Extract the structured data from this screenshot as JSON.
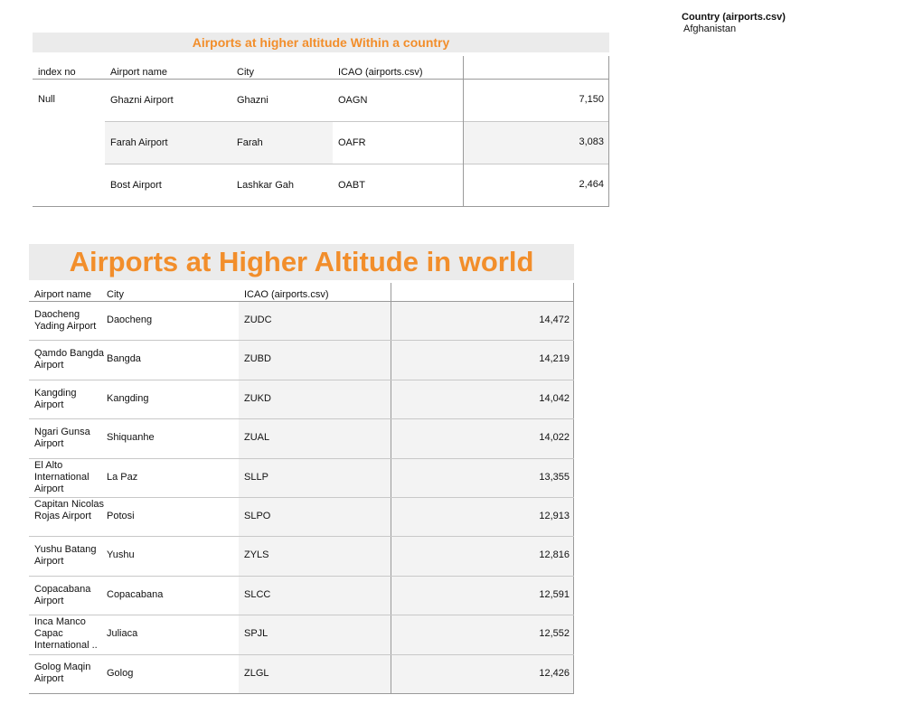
{
  "filter": {
    "title": "Country (airports.csv)",
    "value": "Afghanistan"
  },
  "country_table": {
    "title": "Airports at higher altitude Within a country",
    "headers": [
      "index no",
      "Airport name",
      "City",
      "ICAO (airports.csv)",
      ""
    ],
    "index_value": "Null",
    "rows": [
      {
        "name": "Ghazni Airport",
        "city": "Ghazni",
        "icao": "OAGN",
        "altitude": "7,150"
      },
      {
        "name": "Farah Airport",
        "city": "Farah",
        "icao": "OAFR",
        "altitude": "3,083"
      },
      {
        "name": "Bost Airport",
        "city": "Lashkar Gah",
        "icao": "OABT",
        "altitude": "2,464"
      }
    ]
  },
  "world_table": {
    "title": "Airports at Higher Altitude in world",
    "headers": [
      "Airport name",
      "City",
      "ICAO (airports.csv)",
      ""
    ],
    "rows": [
      {
        "name": "Daocheng Yading Airport",
        "city": "Daocheng",
        "icao": "ZUDC",
        "altitude": "14,472"
      },
      {
        "name": "Qamdo Bangda Airport",
        "city": "Bangda",
        "icao": "ZUBD",
        "altitude": "14,219"
      },
      {
        "name": "Kangding Airport",
        "city": "Kangding",
        "icao": "ZUKD",
        "altitude": "14,042"
      },
      {
        "name": "Ngari Gunsa Airport",
        "city": "Shiquanhe",
        "icao": "ZUAL",
        "altitude": "14,022"
      },
      {
        "name": "El Alto International Airport",
        "city": "La Paz",
        "icao": "SLLP",
        "altitude": "13,355"
      },
      {
        "name": "Capitan Nicolas Rojas Airport",
        "city": "Potosi",
        "icao": "SLPO",
        "altitude": "12,913"
      },
      {
        "name": "Yushu Batang Airport",
        "city": "Yushu",
        "icao": "ZYLS",
        "altitude": "12,816"
      },
      {
        "name": "Copacabana Airport",
        "city": "Copacabana",
        "icao": "SLCC",
        "altitude": "12,591"
      },
      {
        "name": "Inca Manco Capac International ..",
        "city": "Juliaca",
        "icao": "SPJL",
        "altitude": "12,552"
      },
      {
        "name": "Golog Maqin Airport",
        "city": "Golog",
        "icao": "ZLGL",
        "altitude": "12,426"
      }
    ]
  }
}
